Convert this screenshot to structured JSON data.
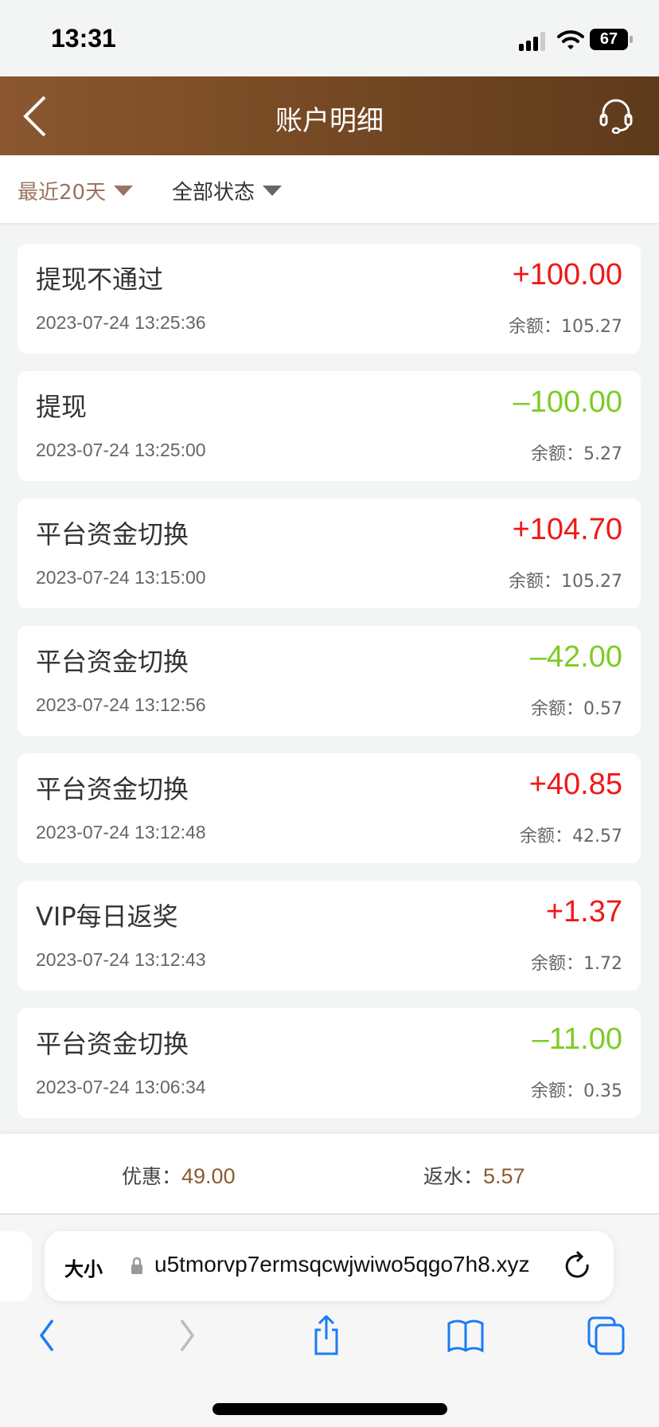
{
  "status_bar": {
    "time": "13:31",
    "battery": "67"
  },
  "header": {
    "title": "账户明细"
  },
  "filters": {
    "period": "最近20天",
    "status": "全部状态"
  },
  "colors": {
    "positive": "#f01818",
    "negative": "#7dcc24",
    "accent": "#8a5a30",
    "header": "#7a4c26"
  },
  "transactions": [
    {
      "title": "提现不通过",
      "amount": "+100.00",
      "sign": "positive",
      "time": "2023-07-24 13:25:36",
      "balance": "余额：105.27"
    },
    {
      "title": "提现",
      "amount": "–100.00",
      "sign": "negative",
      "time": "2023-07-24 13:25:00",
      "balance": "余额：5.27"
    },
    {
      "title": "平台资金切换",
      "amount": "+104.70",
      "sign": "positive",
      "time": "2023-07-24 13:15:00",
      "balance": "余额：105.27"
    },
    {
      "title": "平台资金切换",
      "amount": "–42.00",
      "sign": "negative",
      "time": "2023-07-24 13:12:56",
      "balance": "余额：0.57"
    },
    {
      "title": "平台资金切换",
      "amount": "+40.85",
      "sign": "positive",
      "time": "2023-07-24 13:12:48",
      "balance": "余额：42.57"
    },
    {
      "title": "VIP每日返奖",
      "amount": "+1.37",
      "sign": "positive",
      "time": "2023-07-24 13:12:43",
      "balance": "余额：1.72"
    },
    {
      "title": "平台资金切换",
      "amount": "–11.00",
      "sign": "negative",
      "time": "2023-07-24 13:06:34",
      "balance": "余额：0.35"
    }
  ],
  "summary": {
    "discount_label": "优惠：",
    "discount_value": "49.00",
    "rebate_label": "返水：",
    "rebate_value": "5.57"
  },
  "browser": {
    "text_size": "大小",
    "url": "u5tmorvp7ermsqcwjwiwo5qgo7h8.xyz"
  }
}
